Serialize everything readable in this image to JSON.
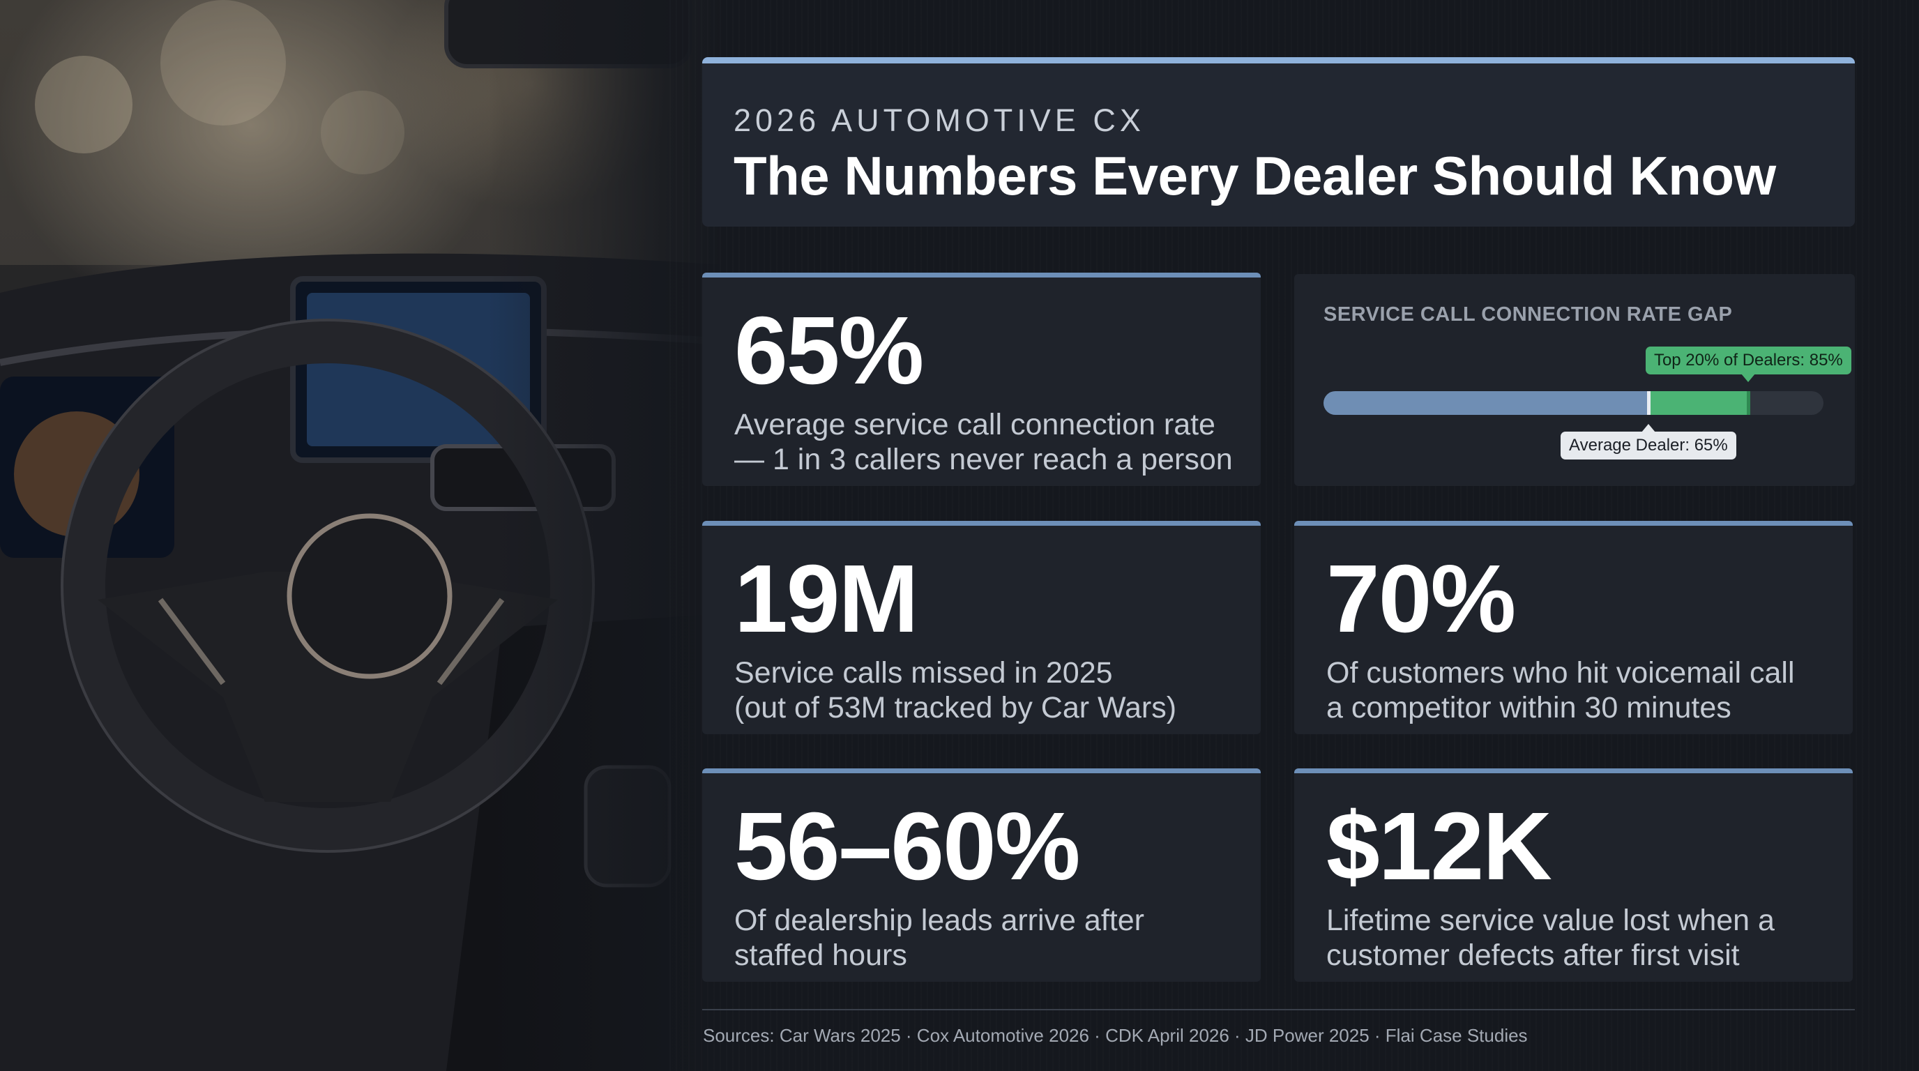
{
  "header": {
    "eyebrow": "2026 AUTOMOTIVE CX",
    "title": "The Numbers Every Dealer Should Know"
  },
  "stats": [
    {
      "value": "65%",
      "desc_lines": [
        "Average service call connection rate",
        "— 1 in 3 callers never reach a person"
      ]
    },
    {
      "value": "19M",
      "desc_lines": [
        "Service calls missed in 2025",
        "(out of 53M tracked by Car Wars)"
      ]
    },
    {
      "value": "70%",
      "desc_lines": [
        "Of customers who hit voicemail call",
        "a competitor within 30 minutes"
      ]
    },
    {
      "value": "56–60%",
      "desc_lines": [
        "Of dealership leads arrive after",
        "staffed hours"
      ]
    },
    {
      "value": "$12K",
      "desc_lines": [
        "Lifetime service value lost when a",
        "customer defects after first visit"
      ]
    }
  ],
  "gap_chart": {
    "title": "SERVICE CALL CONNECTION RATE GAP",
    "average_label": "Average Dealer: 65%",
    "top_label": "Top 20% of Dealers: 85%",
    "average_value": 65,
    "top_value": 85,
    "colors": {
      "average": "#6f8eb4",
      "top": "#4bb374",
      "track": "#2f343d"
    }
  },
  "footer": {
    "sources": "Sources: Car Wars 2025 · Cox Automotive 2026 · CDK April 2026 · JD Power 2025 · Flai Case Studies"
  },
  "colors": {
    "background": "#15181e",
    "card": "#1f232b",
    "accent": "#8fb2db",
    "card_rule": "#6d8fb8"
  }
}
